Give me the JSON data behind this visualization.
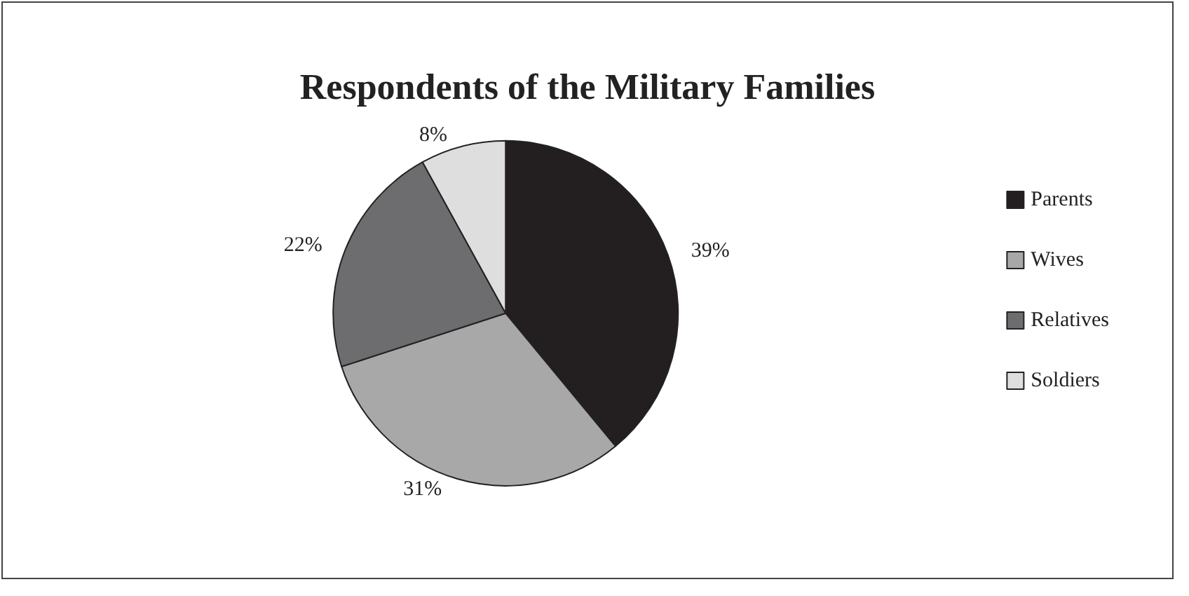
{
  "chart_data": {
    "type": "pie",
    "title": "Respondents of the Military Families",
    "categories": [
      "Parents",
      "Wives",
      "Relatives",
      "Soldiers"
    ],
    "values": [
      39,
      31,
      22,
      8
    ],
    "colors": [
      "#231f20",
      "#a8a8a8",
      "#6d6d6f",
      "#dedede"
    ],
    "value_labels": [
      "39%",
      "31%",
      "22%",
      "8%"
    ],
    "legend": "right"
  }
}
